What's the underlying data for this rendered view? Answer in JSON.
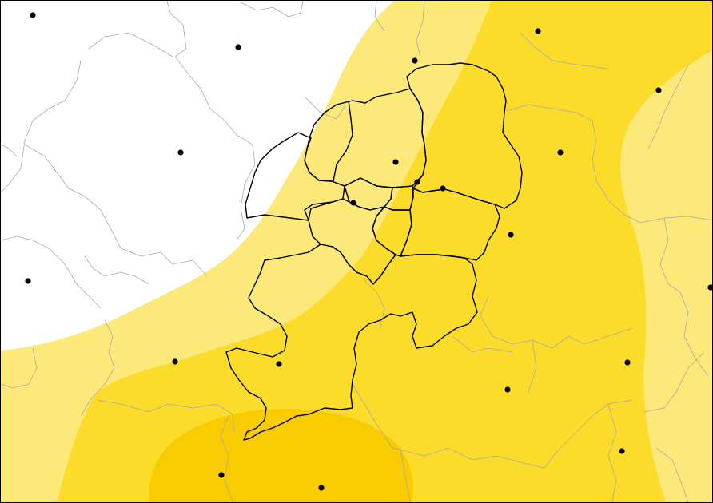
{
  "map": {
    "colors": {
      "background": "#ffffff",
      "zone_light": "#fde97a",
      "zone_mid": "#fcdc2a",
      "zone_dark": "#f8cc00",
      "district_border": "#000000",
      "municipality_border": "#a8a8a8",
      "station": "#000000"
    },
    "zones": [
      {
        "name": "zone-light",
        "color_key": "zone_light"
      },
      {
        "name": "zone-mid",
        "color_key": "zone_mid"
      },
      {
        "name": "zone-dark",
        "color_key": "zone_dark"
      }
    ],
    "station_count": 21,
    "district_count": 11
  }
}
